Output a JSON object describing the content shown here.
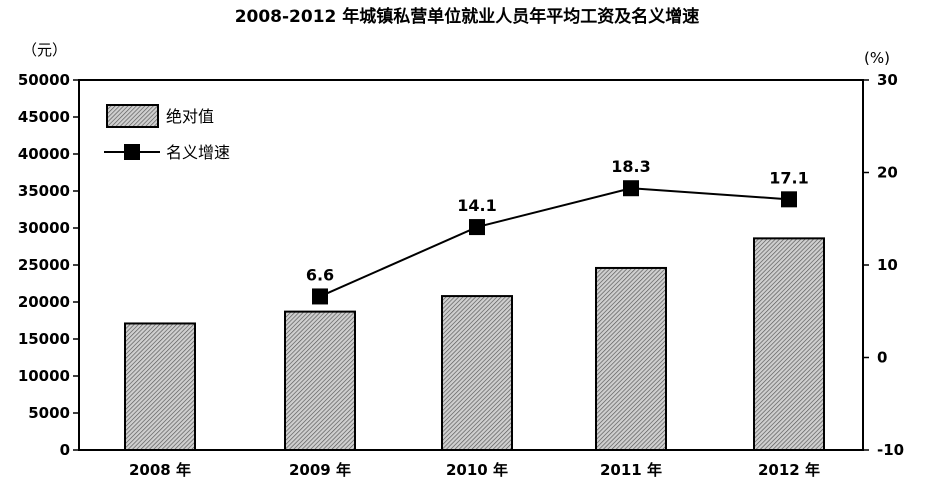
{
  "chart_data": {
    "type": "bar",
    "title": "2008-2012 年城镇私营单位就业人员年平均工资及名义增速",
    "categories": [
      "2008 年",
      "2009 年",
      "2010 年",
      "2011 年",
      "2012 年"
    ],
    "left_axis": {
      "unit": "（元）",
      "range": [
        0,
        50000
      ],
      "ticks": [
        "0",
        "5000",
        "10000",
        "15000",
        "20000",
        "25000",
        "30000",
        "35000",
        "40000",
        "45000",
        "50000"
      ]
    },
    "right_axis": {
      "unit": "(%)",
      "range": [
        -10,
        30
      ],
      "ticks": [
        "-10",
        "0",
        "10",
        "20",
        "30"
      ]
    },
    "series": [
      {
        "name": "绝对值",
        "type": "bar",
        "axis": "left",
        "values": [
          17100,
          18700,
          20800,
          24600,
          28600
        ]
      },
      {
        "name": "名义增速",
        "type": "line",
        "axis": "right",
        "values": [
          null,
          6.6,
          14.1,
          18.3,
          17.1
        ],
        "labels": [
          "",
          "6.6",
          "14.1",
          "18.3",
          "17.1"
        ]
      }
    ],
    "legend_position": "top-left",
    "grid": false,
    "colors": {
      "bar_fill": "#bdbdbd",
      "bar_hatch": "#555555",
      "line": "#000000",
      "marker": "#000000"
    }
  }
}
